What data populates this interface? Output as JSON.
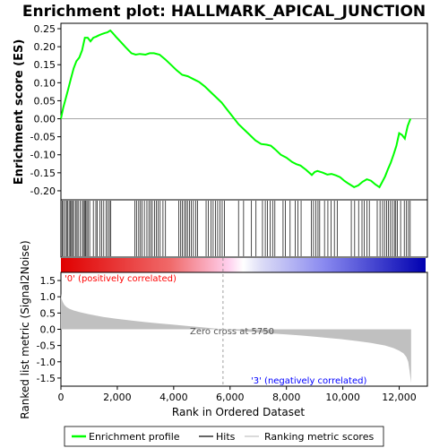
{
  "chart_data": {
    "type": "line",
    "title": "Enrichment plot: HALLMARK_APICAL_JUNCTION",
    "top_panel": {
      "ylabel": "Enrichment score (ES)",
      "ylim": [
        -0.225,
        0.265
      ],
      "yticks": [
        -0.2,
        -0.15,
        -0.1,
        -0.05,
        0.0,
        0.05,
        0.1,
        0.15,
        0.2,
        0.25
      ],
      "ytick_labels": [
        "-0.20",
        "-0.15",
        "-0.10",
        "-0.05",
        "0.00",
        "0.05",
        "0.10",
        "0.15",
        "0.20",
        "0.25"
      ],
      "series": [
        {
          "name": "Enrichment profile",
          "color": "#00ff00",
          "x": [
            0,
            80,
            150,
            250,
            350,
            450,
            550,
            650,
            750,
            850,
            950,
            1050,
            1150,
            1250,
            1350,
            1450,
            1550,
            1650,
            1750,
            1850,
            1950,
            2100,
            2300,
            2500,
            2650,
            2800,
            3000,
            3150,
            3300,
            3500,
            3700,
            3900,
            4100,
            4300,
            4500,
            4700,
            4900,
            5100,
            5300,
            5500,
            5700,
            5900,
            6100,
            6300,
            6500,
            6700,
            6900,
            7100,
            7300,
            7450,
            7600,
            7800,
            8000,
            8200,
            8350,
            8500,
            8700,
            8900,
            9000,
            9100,
            9300,
            9450,
            9600,
            9750,
            9900,
            10050,
            10200,
            10400,
            10550,
            10700,
            10850,
            11000,
            11150,
            11300,
            11400,
            11500,
            11600,
            11700,
            11800,
            11900,
            12000,
            12100,
            12200,
            12300,
            12400
          ],
          "y": [
            0.0,
            0.03,
            0.05,
            0.08,
            0.11,
            0.14,
            0.16,
            0.17,
            0.19,
            0.225,
            0.225,
            0.215,
            0.225,
            0.228,
            0.232,
            0.235,
            0.238,
            0.24,
            0.245,
            0.237,
            0.228,
            0.215,
            0.198,
            0.182,
            0.178,
            0.18,
            0.178,
            0.182,
            0.182,
            0.178,
            0.165,
            0.15,
            0.135,
            0.122,
            0.118,
            0.11,
            0.102,
            0.09,
            0.075,
            0.06,
            0.045,
            0.025,
            0.005,
            -0.015,
            -0.03,
            -0.045,
            -0.06,
            -0.07,
            -0.072,
            -0.075,
            -0.085,
            -0.1,
            -0.108,
            -0.12,
            -0.126,
            -0.13,
            -0.142,
            -0.156,
            -0.148,
            -0.145,
            -0.15,
            -0.155,
            -0.153,
            -0.157,
            -0.162,
            -0.172,
            -0.18,
            -0.19,
            -0.185,
            -0.175,
            -0.168,
            -0.172,
            -0.182,
            -0.19,
            -0.175,
            -0.16,
            -0.14,
            -0.122,
            -0.1,
            -0.075,
            -0.04,
            -0.045,
            -0.055,
            -0.02,
            0.0
          ]
        }
      ]
    },
    "hits": [
      50,
      90,
      150,
      200,
      230,
      290,
      330,
      380,
      410,
      460,
      520,
      570,
      610,
      680,
      760,
      800,
      850,
      880,
      920,
      960,
      1020,
      1150,
      1240,
      1290,
      1380,
      1450,
      1520,
      1600,
      1660,
      1720,
      1770,
      2620,
      2680,
      2760,
      2820,
      2880,
      2960,
      3050,
      3120,
      3180,
      3240,
      3320,
      3390,
      3450,
      3520,
      3620,
      3710,
      4180,
      4250,
      4310,
      4380,
      4430,
      4490,
      4560,
      4620,
      4700,
      4780,
      4850,
      5150,
      5230,
      5320,
      5400,
      5480,
      5560,
      5640,
      5720,
      5800,
      6300,
      6480,
      6760,
      6920,
      7150,
      7250,
      7330,
      7420,
      7510,
      7590,
      7880,
      7960,
      8130,
      8310,
      8410,
      8520,
      8880,
      8960,
      9040,
      9120,
      9180,
      9350,
      9470,
      9580,
      9700,
      9800,
      10300,
      10420,
      10560,
      10680,
      10760,
      10860,
      10940,
      11220,
      11320,
      11410,
      11480,
      11550,
      11620,
      11690,
      11760,
      11830,
      11880,
      11940,
      12050,
      12180,
      12260,
      12330,
      12390
    ],
    "bottom_panel": {
      "ylabel": "Ranked list metric (Signal2Noise)",
      "xlabel": "Rank in Ordered Dataset",
      "xlim": [
        0,
        13000
      ],
      "xticks": [
        0,
        2000,
        4000,
        6000,
        8000,
        10000,
        12000
      ],
      "xtick_labels": [
        "0",
        "2,000",
        "4,000",
        "6,000",
        "8,000",
        "10,000",
        "12,000"
      ],
      "ylim": [
        -1.75,
        1.75
      ],
      "yticks": [
        -1.5,
        -1.0,
        -0.5,
        0.0,
        0.5,
        1.0,
        1.5
      ],
      "ytick_labels": [
        "-1.5",
        "-1.0",
        "-0.5",
        "0.0",
        "0.5",
        "1.0",
        "1.5"
      ],
      "metric": {
        "x": [
          0,
          20,
          60,
          120,
          200,
          300,
          450,
          700,
          1000,
          1500,
          2000,
          2500,
          3000,
          3500,
          4000,
          4500,
          5000,
          5500,
          5750,
          6000,
          6500,
          7000,
          7500,
          8000,
          8500,
          9000,
          9500,
          10000,
          10500,
          11000,
          11500,
          11800,
          12000,
          12150,
          12250,
          12320,
          12370,
          12420
        ],
        "y": [
          1.1,
          0.95,
          0.85,
          0.75,
          0.68,
          0.63,
          0.58,
          0.52,
          0.46,
          0.38,
          0.32,
          0.27,
          0.22,
          0.18,
          0.14,
          0.1,
          0.06,
          0.02,
          0.0,
          -0.02,
          -0.06,
          -0.1,
          -0.13,
          -0.16,
          -0.19,
          -0.23,
          -0.27,
          -0.31,
          -0.36,
          -0.42,
          -0.5,
          -0.58,
          -0.66,
          -0.74,
          -0.85,
          -1.0,
          -1.3,
          -1.65
        ]
      }
    },
    "annotations": {
      "positive": "'0' (positively correlated)",
      "negative": "'3' (negatively correlated)",
      "zero_cross": "Zero cross at 5750",
      "zero_cross_rank": 5750
    },
    "dataset_size": 12420,
    "legend": {
      "placement": "bottom",
      "items": [
        {
          "label": "Enrichment profile",
          "kind": "line",
          "color": "#00ff00"
        },
        {
          "label": "Hits",
          "kind": "line",
          "color": "#000000"
        },
        {
          "label": "Ranking metric scores",
          "kind": "line",
          "color": "#c0c0c0"
        }
      ]
    },
    "colors": {
      "positive": "#ff0000",
      "negative": "#0000ff",
      "metric_fill": "#c0c0c0",
      "pos_label": "#ff0000",
      "neg_label": "#0000ff"
    }
  }
}
